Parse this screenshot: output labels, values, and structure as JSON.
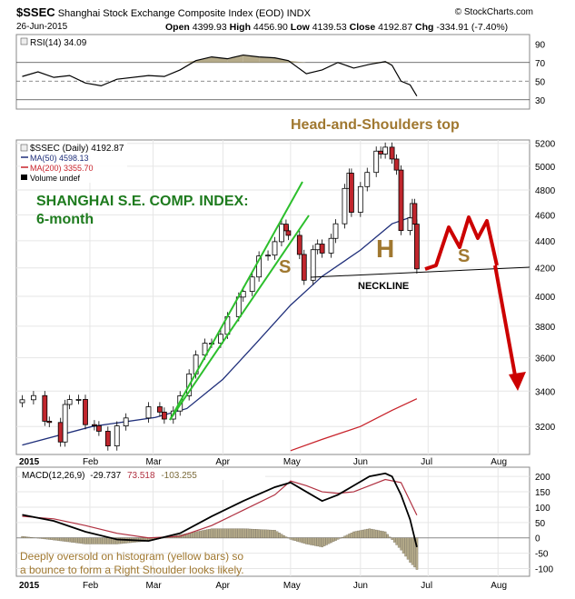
{
  "header": {
    "symbol": "$SSEC",
    "name": "Shanghai Stock Exchange Composite Index (EOD)",
    "exchange": "INDX",
    "source": "© StockCharts.com",
    "date": "26-Jun-2015",
    "ohlc": {
      "open_label": "Open",
      "open": "4399.93",
      "high_label": "High",
      "high": "4456.90",
      "low_label": "Low",
      "low": "4139.53",
      "close_label": "Close",
      "close": "4192.87",
      "chg_label": "Chg",
      "chg": "-334.91 (-7.40%)"
    }
  },
  "colors": {
    "candle_up": "#ffffff",
    "candle_down": "#c0262d",
    "ma50": "#1f2f7a",
    "ma200": "#c8232b",
    "channel": "#2cbf2c",
    "projection": "#cc0000",
    "annotation_gold": "#a07830",
    "title_green": "#1e7b1e",
    "rsi_fill": "#b5ab8a",
    "hist_fill": "#b5ab8a",
    "macd_signal": "#b03040"
  },
  "chart_data": [
    {
      "type": "line",
      "panel": "rsi",
      "legend": "RSI(14) 34.09",
      "y_ticks": [
        90,
        70,
        50,
        30
      ],
      "ylim": [
        20,
        100
      ],
      "levels": [
        70,
        50,
        30
      ],
      "x_range": [
        "2015-01-01",
        "2015-06-26"
      ],
      "series": [
        {
          "name": "RSI(14)",
          "points": [
            [
              "2015-01-02",
              55
            ],
            [
              "2015-01-09",
              60
            ],
            [
              "2015-01-16",
              54
            ],
            [
              "2015-01-23",
              56
            ],
            [
              "2015-01-30",
              48
            ],
            [
              "2015-02-06",
              45
            ],
            [
              "2015-02-13",
              52
            ],
            [
              "2015-02-27",
              56
            ],
            [
              "2015-03-06",
              55
            ],
            [
              "2015-03-13",
              62
            ],
            [
              "2015-03-20",
              72
            ],
            [
              "2015-03-27",
              76
            ],
            [
              "2015-04-03",
              74
            ],
            [
              "2015-04-10",
              78
            ],
            [
              "2015-04-17",
              76
            ],
            [
              "2015-04-24",
              75
            ],
            [
              "2015-04-30",
              72
            ],
            [
              "2015-05-08",
              58
            ],
            [
              "2015-05-15",
              62
            ],
            [
              "2015-05-22",
              70
            ],
            [
              "2015-05-29",
              64
            ],
            [
              "2015-06-05",
              68
            ],
            [
              "2015-06-12",
              71
            ],
            [
              "2015-06-15",
              67
            ],
            [
              "2015-06-19",
              50
            ],
            [
              "2015-06-23",
              46
            ],
            [
              "2015-06-26",
              34
            ]
          ]
        }
      ]
    },
    {
      "type": "candlestick",
      "panel": "price",
      "title": "Head-and-Shoulders top",
      "legend": [
        "$SSEC (Daily) 4192.87",
        "MA(50) 4598.13",
        "MA(200) 3355.70",
        "Volume undef"
      ],
      "y_ticks": [
        5200,
        5000,
        4800,
        4600,
        4400,
        4200,
        4000,
        3800,
        3600,
        3400,
        3200
      ],
      "ylim": [
        3050,
        5230
      ],
      "log_scale": true,
      "x_range": [
        "2015-01-01",
        "2015-08-15"
      ],
      "x_ticks": [
        "2015",
        "Feb",
        "Mar",
        "Apr",
        "May",
        "Jun",
        "Jul",
        "Aug"
      ],
      "grid": true,
      "closes": [
        [
          "2015-01-02",
          3350
        ],
        [
          "2015-01-07",
          3374
        ],
        [
          "2015-01-12",
          3229
        ],
        [
          "2015-01-14",
          3222
        ],
        [
          "2015-01-19",
          3116
        ],
        [
          "2015-01-21",
          3323
        ],
        [
          "2015-01-23",
          3351
        ],
        [
          "2015-01-27",
          3352
        ],
        [
          "2015-01-30",
          3210
        ],
        [
          "2015-02-03",
          3204
        ],
        [
          "2015-02-05",
          3174
        ],
        [
          "2015-02-09",
          3095
        ],
        [
          "2015-02-13",
          3203
        ],
        [
          "2015-02-17",
          3247
        ],
        [
          "2015-02-27",
          3310
        ],
        [
          "2015-03-04",
          3280
        ],
        [
          "2015-03-06",
          3241
        ],
        [
          "2015-03-10",
          3286
        ],
        [
          "2015-03-13",
          3373
        ],
        [
          "2015-03-17",
          3502
        ],
        [
          "2015-03-20",
          3617
        ],
        [
          "2015-03-24",
          3691
        ],
        [
          "2015-03-27",
          3691
        ],
        [
          "2015-03-31",
          3748
        ],
        [
          "2015-04-03",
          3863
        ],
        [
          "2015-04-08",
          3995
        ],
        [
          "2015-04-10",
          4034
        ],
        [
          "2015-04-14",
          4135
        ],
        [
          "2015-04-17",
          4287
        ],
        [
          "2015-04-21",
          4293
        ],
        [
          "2015-04-24",
          4393
        ],
        [
          "2015-04-27",
          4527
        ],
        [
          "2015-04-29",
          4476
        ],
        [
          "2015-04-30",
          4441
        ],
        [
          "2015-05-05",
          4298
        ],
        [
          "2015-05-07",
          4112
        ],
        [
          "2015-05-11",
          4333
        ],
        [
          "2015-05-13",
          4375
        ],
        [
          "2015-05-15",
          4308
        ],
        [
          "2015-05-19",
          4418
        ],
        [
          "2015-05-21",
          4530
        ],
        [
          "2015-05-25",
          4813
        ],
        [
          "2015-05-27",
          4941
        ],
        [
          "2015-05-28",
          4620
        ],
        [
          "2015-06-01",
          4828
        ],
        [
          "2015-06-04",
          4947
        ],
        [
          "2015-06-08",
          5131
        ],
        [
          "2015-06-10",
          5106
        ],
        [
          "2015-06-12",
          5166
        ],
        [
          "2015-06-15",
          5062
        ],
        [
          "2015-06-17",
          4967
        ],
        [
          "2015-06-19",
          4478
        ],
        [
          "2015-06-23",
          4576
        ],
        [
          "2015-06-24",
          4690
        ],
        [
          "2015-06-25",
          4527
        ],
        [
          "2015-06-26",
          4193
        ]
      ],
      "ma50": [
        [
          "2015-01-02",
          3100
        ],
        [
          "2015-02-02",
          3200
        ],
        [
          "2015-03-02",
          3250
        ],
        [
          "2015-03-16",
          3300
        ],
        [
          "2015-04-01",
          3470
        ],
        [
          "2015-04-15",
          3680
        ],
        [
          "2015-05-01",
          3940
        ],
        [
          "2015-05-15",
          4140
        ],
        [
          "2015-06-01",
          4330
        ],
        [
          "2015-06-15",
          4530
        ],
        [
          "2015-06-26",
          4598
        ]
      ],
      "ma200": [
        [
          "2015-05-01",
          3070
        ],
        [
          "2015-05-15",
          3130
        ],
        [
          "2015-06-01",
          3200
        ],
        [
          "2015-06-15",
          3290
        ],
        [
          "2015-06-26",
          3356
        ]
      ],
      "annotations": {
        "panel_title": "SHANGHAI S.E. COMP. INDEX:",
        "panel_subtitle": "6-month",
        "left_shoulder": "S",
        "head": "H",
        "right_shoulder": "S",
        "neckline": "NECKLINE"
      }
    },
    {
      "type": "line",
      "panel": "macd",
      "legend": [
        "MACD(12,26,9)",
        "-29.737",
        "73.518",
        "-103.255"
      ],
      "y_ticks": [
        200,
        150,
        100,
        50,
        0,
        -50,
        -100
      ],
      "ylim": [
        -125,
        230
      ],
      "x_range": [
        "2015-01-01",
        "2015-08-15"
      ],
      "x_ticks": [
        "2015",
        "Feb",
        "Mar",
        "Apr",
        "May",
        "Jun",
        "Jul",
        "Aug"
      ],
      "annotation": "Deeply oversold on histogram (yellow bars) so a bounce to form a Right Shoulder looks likely.",
      "series": [
        {
          "name": "MACD",
          "points": [
            [
              "2015-01-02",
              75
            ],
            [
              "2015-01-16",
              55
            ],
            [
              "2015-01-30",
              20
            ],
            [
              "2015-02-13",
              -5
            ],
            [
              "2015-02-27",
              -10
            ],
            [
              "2015-03-13",
              15
            ],
            [
              "2015-03-27",
              70
            ],
            [
              "2015-04-10",
              120
            ],
            [
              "2015-04-24",
              165
            ],
            [
              "2015-05-01",
              180
            ],
            [
              "2015-05-08",
              150
            ],
            [
              "2015-05-15",
              120
            ],
            [
              "2015-05-22",
              140
            ],
            [
              "2015-05-29",
              170
            ],
            [
              "2015-06-05",
              200
            ],
            [
              "2015-06-12",
              210
            ],
            [
              "2015-06-15",
              200
            ],
            [
              "2015-06-19",
              140
            ],
            [
              "2015-06-23",
              60
            ],
            [
              "2015-06-26",
              -30
            ]
          ]
        },
        {
          "name": "Signal",
          "points": [
            [
              "2015-01-02",
              70
            ],
            [
              "2015-01-16",
              62
            ],
            [
              "2015-01-30",
              40
            ],
            [
              "2015-02-13",
              15
            ],
            [
              "2015-02-27",
              0
            ],
            [
              "2015-03-13",
              5
            ],
            [
              "2015-03-27",
              40
            ],
            [
              "2015-04-10",
              90
            ],
            [
              "2015-04-24",
              140
            ],
            [
              "2015-05-01",
              185
            ],
            [
              "2015-05-08",
              170
            ],
            [
              "2015-05-15",
              150
            ],
            [
              "2015-05-22",
              145
            ],
            [
              "2015-05-29",
              150
            ],
            [
              "2015-06-05",
              170
            ],
            [
              "2015-06-12",
              190
            ],
            [
              "2015-06-19",
              180
            ],
            [
              "2015-06-26",
              74
            ]
          ]
        },
        {
          "name": "Histogram",
          "points": [
            [
              "2015-01-02",
              5
            ],
            [
              "2015-01-16",
              -7
            ],
            [
              "2015-01-30",
              -20
            ],
            [
              "2015-02-13",
              -20
            ],
            [
              "2015-02-27",
              -10
            ],
            [
              "2015-03-13",
              10
            ],
            [
              "2015-03-27",
              30
            ],
            [
              "2015-04-10",
              30
            ],
            [
              "2015-04-24",
              25
            ],
            [
              "2015-05-01",
              -5
            ],
            [
              "2015-05-08",
              -20
            ],
            [
              "2015-05-15",
              -30
            ],
            [
              "2015-05-22",
              -5
            ],
            [
              "2015-05-29",
              20
            ],
            [
              "2015-06-05",
              30
            ],
            [
              "2015-06-12",
              20
            ],
            [
              "2015-06-19",
              -40
            ],
            [
              "2015-06-23",
              -80
            ],
            [
              "2015-06-26",
              -103
            ]
          ]
        }
      ]
    }
  ]
}
